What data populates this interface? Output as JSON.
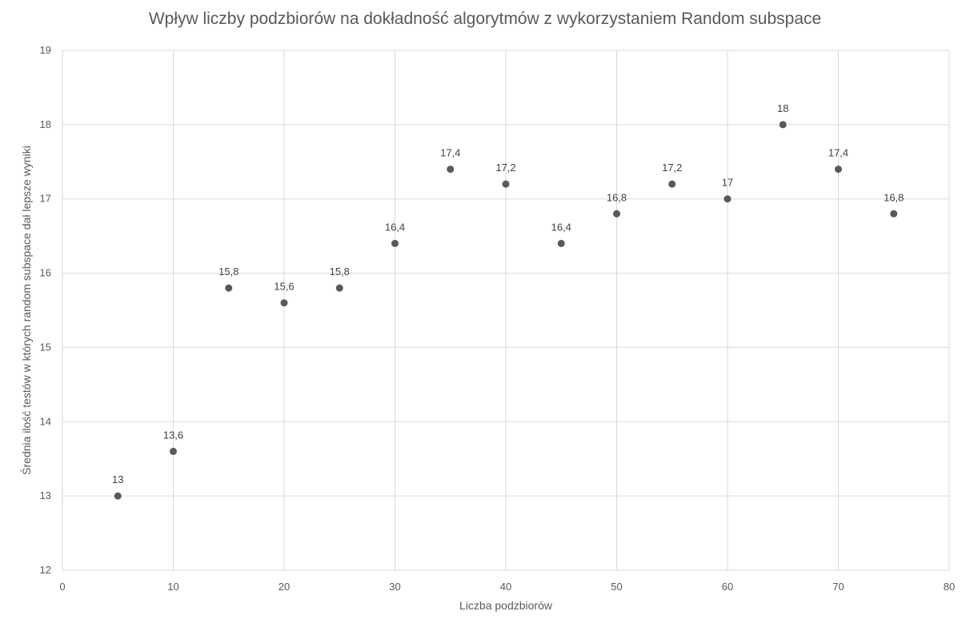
{
  "chart_data": {
    "type": "scatter",
    "title": "Wpływ liczby podzbiorów na dokładność algorytmów z wykorzystaniem Random subspace",
    "xlabel": "Liczba podzbiorów",
    "ylabel": "Średnia ilość testów w których random subspace dał lepsze wyniki",
    "xlim": [
      0,
      80
    ],
    "ylim": [
      12,
      19
    ],
    "xticks": [
      0,
      10,
      20,
      30,
      40,
      50,
      60,
      70,
      80
    ],
    "yticks": [
      12,
      13,
      14,
      15,
      16,
      17,
      18,
      19
    ],
    "grid": true,
    "legend": "none",
    "marker_color": "#595959",
    "grid_color": "#d9d9d9",
    "series": [
      {
        "x": [
          5,
          10,
          15,
          20,
          25,
          30,
          35,
          40,
          45,
          50,
          55,
          60,
          65,
          70,
          75
        ],
        "y": [
          13,
          13.6,
          15.8,
          15.6,
          15.8,
          16.4,
          17.4,
          17.2,
          16.4,
          16.8,
          17.2,
          17,
          18,
          17.4,
          16.8
        ],
        "labels": [
          "13",
          "13,6",
          "15,8",
          "15,6",
          "15,8",
          "16,4",
          "17,4",
          "17,2",
          "16,4",
          "16,8",
          "17,2",
          "17",
          "18",
          "17,4",
          "16,8"
        ]
      }
    ]
  }
}
